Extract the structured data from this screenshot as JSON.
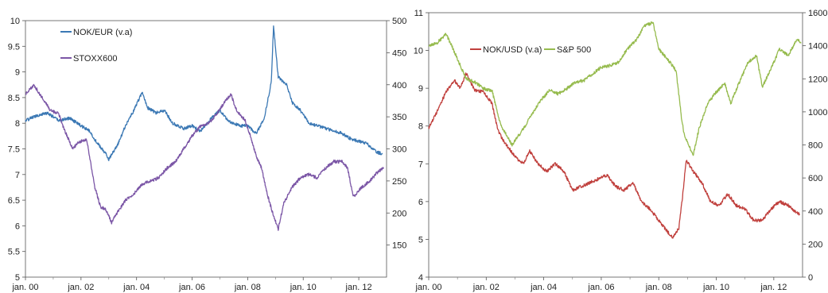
{
  "chart_data": [
    {
      "type": "line",
      "title": "",
      "xlabel": "",
      "x_ticks": [
        "jan. 00",
        "jan. 02",
        "jan. 04",
        "jan. 06",
        "jan. 08",
        "jan. 10",
        "jan. 12"
      ],
      "xlim": [
        2000,
        2013
      ],
      "y_left": {
        "lim": [
          5,
          10
        ],
        "ticks": [
          "5",
          "5.5",
          "6",
          "6.5",
          "7",
          "7.5",
          "8",
          "8.5",
          "9",
          "9.5",
          "10"
        ]
      },
      "y_right": {
        "lim": [
          100,
          500
        ],
        "ticks": [
          "150",
          "200",
          "250",
          "300",
          "350",
          "400",
          "450",
          "500"
        ]
      },
      "grid": false,
      "legend": "top-left",
      "series": [
        {
          "name": "NOK/EUR (v.a)",
          "axis": "left",
          "color": "#3b78b4",
          "points": [
            [
              2000.0,
              8.05
            ],
            [
              2000.4,
              8.15
            ],
            [
              2000.8,
              8.2
            ],
            [
              2001.2,
              8.05
            ],
            [
              2001.6,
              8.1
            ],
            [
              2002.0,
              7.95
            ],
            [
              2002.3,
              7.85
            ],
            [
              2002.6,
              7.6
            ],
            [
              2002.9,
              7.4
            ],
            [
              2003.0,
              7.3
            ],
            [
              2003.3,
              7.55
            ],
            [
              2003.6,
              7.95
            ],
            [
              2003.9,
              8.25
            ],
            [
              2004.2,
              8.6
            ],
            [
              2004.4,
              8.3
            ],
            [
              2004.7,
              8.2
            ],
            [
              2005.0,
              8.25
            ],
            [
              2005.3,
              8.0
            ],
            [
              2005.7,
              7.9
            ],
            [
              2006.0,
              7.95
            ],
            [
              2006.3,
              7.85
            ],
            [
              2006.7,
              8.1
            ],
            [
              2007.0,
              8.25
            ],
            [
              2007.3,
              8.05
            ],
            [
              2007.7,
              7.95
            ],
            [
              2008.0,
              7.95
            ],
            [
              2008.3,
              7.8
            ],
            [
              2008.6,
              8.1
            ],
            [
              2008.85,
              8.8
            ],
            [
              2008.93,
              9.9
            ],
            [
              2009.1,
              8.9
            ],
            [
              2009.4,
              8.75
            ],
            [
              2009.6,
              8.4
            ],
            [
              2009.9,
              8.25
            ],
            [
              2010.2,
              8.0
            ],
            [
              2010.5,
              7.95
            ],
            [
              2010.8,
              7.9
            ],
            [
              2011.1,
              7.85
            ],
            [
              2011.4,
              7.8
            ],
            [
              2011.7,
              7.7
            ],
            [
              2012.0,
              7.65
            ],
            [
              2012.3,
              7.6
            ],
            [
              2012.6,
              7.45
            ],
            [
              2012.85,
              7.4
            ]
          ]
        },
        {
          "name": "STOXX600",
          "axis": "right",
          "color": "#7b56a6",
          "points": [
            [
              2000.0,
              385
            ],
            [
              2000.3,
              400
            ],
            [
              2000.6,
              380
            ],
            [
              2000.9,
              360
            ],
            [
              2001.2,
              355
            ],
            [
              2001.4,
              330
            ],
            [
              2001.7,
              300
            ],
            [
              2001.9,
              310
            ],
            [
              2002.2,
              315
            ],
            [
              2002.5,
              240
            ],
            [
              2002.7,
              210
            ],
            [
              2002.9,
              205
            ],
            [
              2003.1,
              185
            ],
            [
              2003.3,
              200
            ],
            [
              2003.6,
              220
            ],
            [
              2003.9,
              230
            ],
            [
              2004.2,
              245
            ],
            [
              2004.5,
              250
            ],
            [
              2004.8,
              255
            ],
            [
              2005.1,
              270
            ],
            [
              2005.4,
              280
            ],
            [
              2005.7,
              300
            ],
            [
              2006.0,
              320
            ],
            [
              2006.3,
              335
            ],
            [
              2006.6,
              340
            ],
            [
              2006.9,
              355
            ],
            [
              2007.2,
              375
            ],
            [
              2007.4,
              385
            ],
            [
              2007.6,
              360
            ],
            [
              2007.9,
              345
            ],
            [
              2008.1,
              320
            ],
            [
              2008.3,
              290
            ],
            [
              2008.5,
              270
            ],
            [
              2008.7,
              230
            ],
            [
              2008.9,
              200
            ],
            [
              2009.1,
              175
            ],
            [
              2009.3,
              215
            ],
            [
              2009.6,
              240
            ],
            [
              2009.9,
              255
            ],
            [
              2010.2,
              260
            ],
            [
              2010.5,
              255
            ],
            [
              2010.8,
              270
            ],
            [
              2011.1,
              280
            ],
            [
              2011.4,
              280
            ],
            [
              2011.6,
              270
            ],
            [
              2011.8,
              225
            ],
            [
              2012.1,
              240
            ],
            [
              2012.4,
              250
            ],
            [
              2012.7,
              265
            ],
            [
              2012.9,
              270
            ]
          ]
        }
      ]
    },
    {
      "type": "line",
      "title": "",
      "xlabel": "",
      "x_ticks": [
        "jan. 00",
        "jan. 02",
        "jan. 04",
        "jan. 06",
        "jan. 08",
        "jan. 10",
        "jan. 12"
      ],
      "xlim": [
        2000,
        2013
      ],
      "y_left": {
        "lim": [
          4,
          11
        ],
        "ticks": [
          "4",
          "5",
          "6",
          "7",
          "8",
          "9",
          "10",
          "11"
        ]
      },
      "y_right": {
        "lim": [
          0,
          1600
        ],
        "ticks": [
          "0",
          "200",
          "400",
          "600",
          "800",
          "1000",
          "1200",
          "1400",
          "1600"
        ]
      },
      "grid": false,
      "legend": "top-left",
      "series": [
        {
          "name": "NOK/USD (v.a)",
          "axis": "left",
          "color": "#c0403d",
          "points": [
            [
              2000.0,
              7.95
            ],
            [
              2000.3,
              8.4
            ],
            [
              2000.6,
              8.9
            ],
            [
              2000.9,
              9.2
            ],
            [
              2001.1,
              9.0
            ],
            [
              2001.3,
              9.4
            ],
            [
              2001.6,
              8.95
            ],
            [
              2001.9,
              8.9
            ],
            [
              2002.2,
              8.6
            ],
            [
              2002.4,
              7.9
            ],
            [
              2002.6,
              7.6
            ],
            [
              2002.9,
              7.3
            ],
            [
              2003.1,
              7.1
            ],
            [
              2003.3,
              7.0
            ],
            [
              2003.5,
              7.35
            ],
            [
              2003.8,
              7.0
            ],
            [
              2004.1,
              6.8
            ],
            [
              2004.4,
              7.0
            ],
            [
              2004.7,
              6.8
            ],
            [
              2005.0,
              6.3
            ],
            [
              2005.3,
              6.4
            ],
            [
              2005.6,
              6.5
            ],
            [
              2005.9,
              6.6
            ],
            [
              2006.2,
              6.7
            ],
            [
              2006.5,
              6.4
            ],
            [
              2006.8,
              6.3
            ],
            [
              2007.1,
              6.5
            ],
            [
              2007.4,
              6.0
            ],
            [
              2007.7,
              5.8
            ],
            [
              2008.0,
              5.5
            ],
            [
              2008.3,
              5.2
            ],
            [
              2008.5,
              5.05
            ],
            [
              2008.7,
              5.3
            ],
            [
              2008.85,
              6.3
            ],
            [
              2008.95,
              7.1
            ],
            [
              2009.2,
              6.8
            ],
            [
              2009.5,
              6.5
            ],
            [
              2009.8,
              6.0
            ],
            [
              2010.1,
              5.9
            ],
            [
              2010.4,
              6.2
            ],
            [
              2010.7,
              5.9
            ],
            [
              2011.0,
              5.8
            ],
            [
              2011.3,
              5.5
            ],
            [
              2011.6,
              5.5
            ],
            [
              2011.9,
              5.8
            ],
            [
              2012.2,
              6.0
            ],
            [
              2012.5,
              5.9
            ],
            [
              2012.9,
              5.65
            ]
          ]
        },
        {
          "name": "S&P 500",
          "axis": "right",
          "color": "#96bb4e",
          "points": [
            [
              2000.0,
              1400
            ],
            [
              2000.3,
              1420
            ],
            [
              2000.6,
              1470
            ],
            [
              2000.8,
              1400
            ],
            [
              2001.0,
              1320
            ],
            [
              2001.3,
              1200
            ],
            [
              2001.6,
              1180
            ],
            [
              2001.9,
              1140
            ],
            [
              2002.2,
              1130
            ],
            [
              2002.5,
              920
            ],
            [
              2002.7,
              860
            ],
            [
              2002.9,
              800
            ],
            [
              2003.1,
              850
            ],
            [
              2003.3,
              900
            ],
            [
              2003.6,
              990
            ],
            [
              2003.9,
              1070
            ],
            [
              2004.2,
              1130
            ],
            [
              2004.5,
              1110
            ],
            [
              2004.8,
              1140
            ],
            [
              2005.1,
              1180
            ],
            [
              2005.4,
              1190
            ],
            [
              2005.7,
              1230
            ],
            [
              2006.0,
              1270
            ],
            [
              2006.3,
              1280
            ],
            [
              2006.6,
              1300
            ],
            [
              2006.9,
              1380
            ],
            [
              2007.2,
              1430
            ],
            [
              2007.5,
              1520
            ],
            [
              2007.8,
              1540
            ],
            [
              2008.0,
              1380
            ],
            [
              2008.3,
              1320
            ],
            [
              2008.6,
              1250
            ],
            [
              2008.8,
              950
            ],
            [
              2008.9,
              850
            ],
            [
              2009.2,
              740
            ],
            [
              2009.4,
              900
            ],
            [
              2009.7,
              1050
            ],
            [
              2010.0,
              1120
            ],
            [
              2010.3,
              1170
            ],
            [
              2010.5,
              1050
            ],
            [
              2010.8,
              1180
            ],
            [
              2011.1,
              1300
            ],
            [
              2011.4,
              1340
            ],
            [
              2011.6,
              1150
            ],
            [
              2011.9,
              1260
            ],
            [
              2012.2,
              1380
            ],
            [
              2012.5,
              1340
            ],
            [
              2012.8,
              1440
            ],
            [
              2012.95,
              1420
            ]
          ]
        }
      ]
    }
  ]
}
